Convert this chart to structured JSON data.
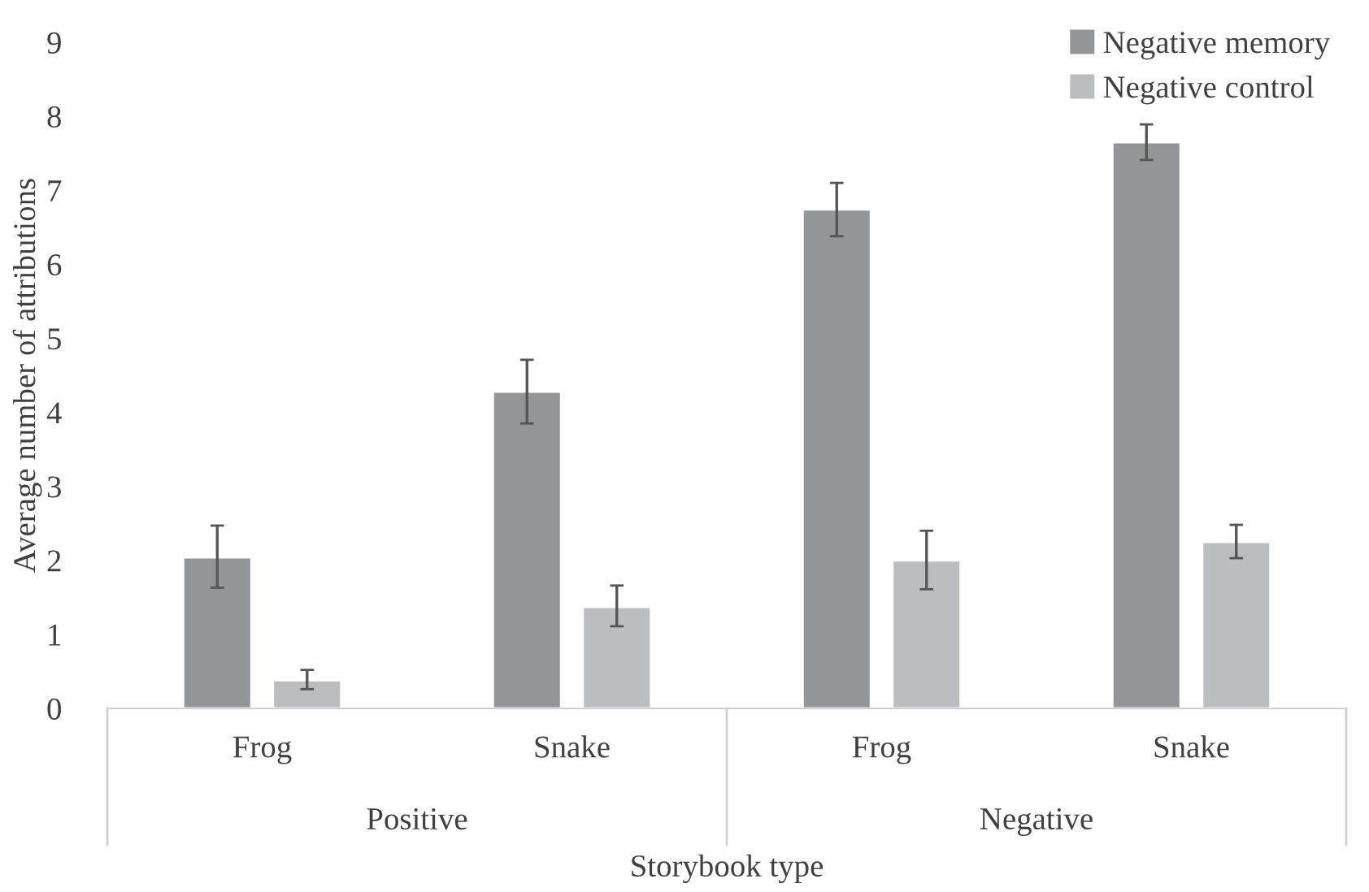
{
  "chart_data": {
    "type": "bar",
    "ylabel": "Average number of attributions",
    "xlabel": "Storybook type",
    "categories": [
      "Frog",
      "Snake",
      "Frog",
      "Snake"
    ],
    "annotations": [
      "Positive",
      "Negative"
    ],
    "series": [
      {
        "name": "Negative memory",
        "color": "#939598",
        "values": [
          2.04,
          4.28,
          6.74,
          7.65
        ],
        "errors": [
          [
            1.63,
            2.47
          ],
          [
            3.85,
            4.71
          ],
          [
            6.38,
            7.1
          ],
          [
            7.41,
            7.89
          ]
        ]
      },
      {
        "name": "Negative control",
        "color": "#bcbdc0",
        "values": [
          0.38,
          1.37,
          2.0,
          2.25
        ],
        "errors": [
          [
            0.26,
            0.52
          ],
          [
            1.11,
            1.66
          ],
          [
            1.61,
            2.4
          ],
          [
            2.03,
            2.48
          ]
        ]
      }
    ],
    "ylim": [
      0,
      9
    ],
    "yticks": [
      0,
      1,
      2,
      3,
      4,
      5,
      6,
      7,
      8,
      9
    ],
    "grid": false,
    "legend": "top right"
  }
}
